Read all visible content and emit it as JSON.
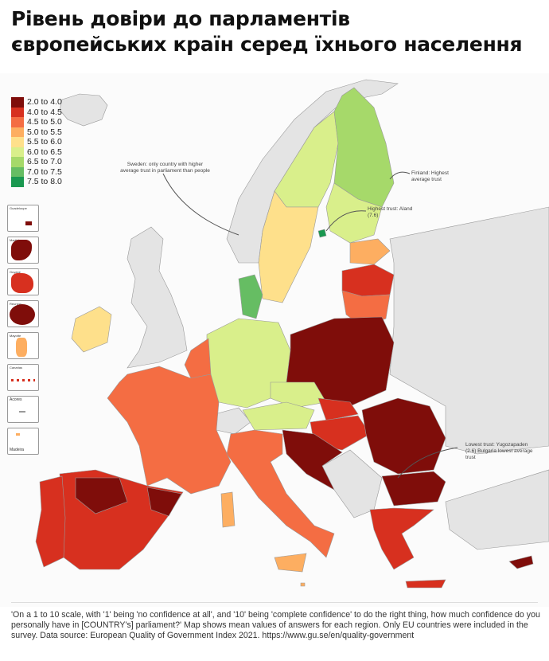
{
  "title": {
    "line1": "Рівень довіри до парламентів",
    "line2": "європейських країн серед їхнього населення"
  },
  "legend": {
    "items": [
      {
        "label": "2.0 to 4.0",
        "color": "#7f0d0a"
      },
      {
        "label": "4.0 to 4.5",
        "color": "#d7301f"
      },
      {
        "label": "4.5 to 5.0",
        "color": "#f46d43"
      },
      {
        "label": "5.0 to 5.5",
        "color": "#fdae61"
      },
      {
        "label": "5.5 to 6.0",
        "color": "#fee08b"
      },
      {
        "label": "6.0 to 6.5",
        "color": "#d9ef8b"
      },
      {
        "label": "6.5 to 7.0",
        "color": "#a6d96a"
      },
      {
        "label": "7.0 to 7.5",
        "color": "#66bd63"
      },
      {
        "label": "7.5 to 8.0",
        "color": "#1a9850"
      }
    ]
  },
  "insets": [
    {
      "label": "Guadeloupe"
    },
    {
      "label": "Martinique"
    },
    {
      "label": "Guyane"
    },
    {
      "label": "Reunion"
    },
    {
      "label": "Mayotte"
    },
    {
      "label": "Canarias"
    },
    {
      "label": "Acores"
    },
    {
      "label": "Madeira"
    }
  ],
  "annotations": {
    "sweden": "Sweden: only country with higher average trust in parliament than people",
    "finland": "Finland: Highest average trust",
    "aland": "Highest trust: Aland (7.6)",
    "bulgaria": "Lowest trust: Yugozapaden (2.6) Bulgaria lowest average trust"
  },
  "colors": {
    "non_eu_land": "#e4e4e4",
    "sea": "#fbfbfb"
  },
  "footnote": "'On a 1 to 10 scale, with '1' being 'no confidence at all', and '10' being 'complete confidence' to do the right thing, how much confidence do you personally have in [COUNTRY's] parliament?' Map shows mean values of answers for each region. Only EU countries were included in the survey. Data source: European Quality of Government Index 2021. https://www.gu.se/en/quality-government"
}
